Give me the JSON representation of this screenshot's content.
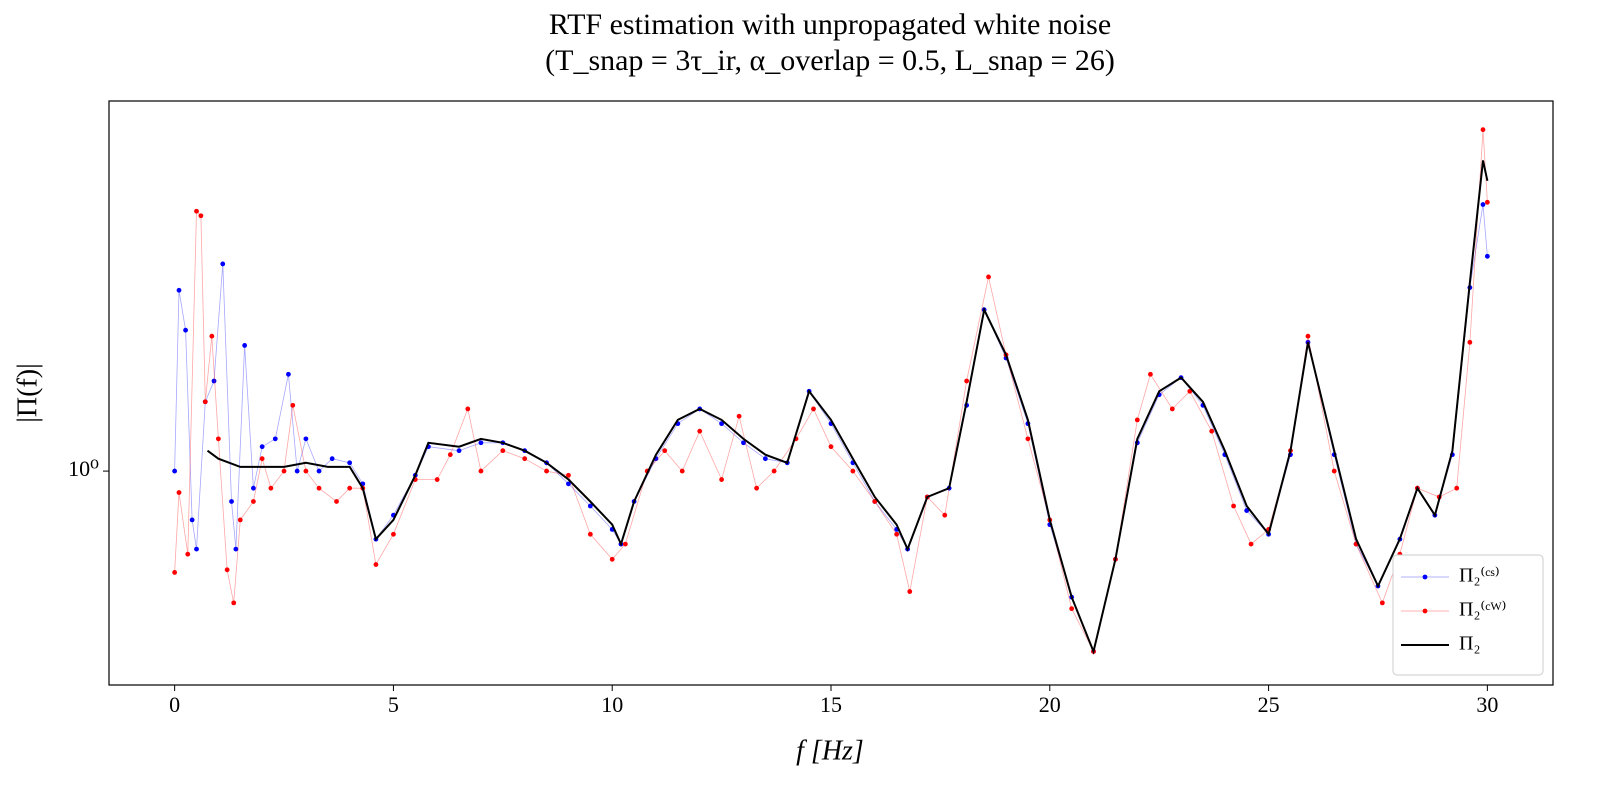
{
  "chart_data": {
    "type": "line",
    "title": "RTF estimation with unpropagated white noise",
    "subtitle": "(T_snap = 3τ_ir,   α_overlap = 0.5,   L_snap = 26)",
    "x_label": "f [Hz]",
    "y_label": "|Π(f)|",
    "xlim": [
      -1.5,
      31.5
    ],
    "xticks": [
      0,
      5,
      10,
      15,
      20,
      25,
      30
    ],
    "ylim": [
      0.6,
      2.42
    ],
    "yticks": [
      {
        "value": 1,
        "label": "10⁰"
      }
    ],
    "log_y": true,
    "legend": "lower right",
    "series": [
      {
        "name": "Π₂⁽ᶜˢ⁾",
        "color": "#0000ff",
        "marker": true,
        "x": [
          0,
          0.1,
          0.25,
          0.4,
          0.5,
          0.7,
          0.9,
          1.1,
          1.3,
          1.4,
          1.6,
          1.8,
          2.0,
          2.3,
          2.6,
          2.8,
          3.0,
          3.3,
          3.6,
          4,
          4.3,
          4.6,
          5,
          5.5,
          5.8,
          6.5,
          7,
          7.5,
          8,
          8.5,
          9,
          9.5,
          10,
          10.2,
          10.5,
          11,
          11.5,
          12,
          12.5,
          13,
          13.5,
          14,
          14.5,
          15,
          15.5,
          16,
          16.5,
          16.75,
          17.2,
          17.7,
          18.1,
          18.5,
          19,
          19.5,
          20,
          20.5,
          21,
          21.5,
          22,
          22.5,
          23,
          23.5,
          24,
          24.5,
          25,
          25.5,
          25.9,
          26.5,
          27,
          27.5,
          28,
          28.4,
          28.8,
          29.2,
          29.6,
          29.9,
          30
        ],
        "values": [
          1.0,
          1.54,
          1.4,
          0.89,
          0.83,
          1.18,
          1.24,
          1.64,
          0.93,
          0.83,
          1.35,
          0.96,
          1.06,
          1.08,
          1.26,
          1.0,
          1.08,
          1.0,
          1.03,
          1.02,
          0.97,
          0.85,
          0.9,
          0.99,
          1.06,
          1.05,
          1.07,
          1.07,
          1.05,
          1.02,
          0.97,
          0.92,
          0.87,
          0.84,
          0.93,
          1.03,
          1.12,
          1.16,
          1.12,
          1.07,
          1.03,
          1.02,
          1.21,
          1.12,
          1.02,
          0.93,
          0.87,
          0.83,
          0.94,
          0.96,
          1.17,
          1.47,
          1.31,
          1.12,
          0.88,
          0.74,
          0.65,
          0.81,
          1.07,
          1.2,
          1.25,
          1.17,
          1.04,
          0.91,
          0.86,
          1.04,
          1.36,
          1.04,
          0.84,
          0.76,
          0.85,
          0.96,
          0.9,
          1.04,
          1.55,
          1.89,
          1.67
        ]
      },
      {
        "name": "Π₂⁽ᶜᵂ⁾",
        "color": "#ff0000",
        "marker": true,
        "x": [
          0,
          0.1,
          0.3,
          0.5,
          0.6,
          0.7,
          0.85,
          1.0,
          1.2,
          1.35,
          1.5,
          1.8,
          2.0,
          2.2,
          2.5,
          2.7,
          3.0,
          3.3,
          3.7,
          4.0,
          4.3,
          4.6,
          5.0,
          5.5,
          6.0,
          6.3,
          6.7,
          7.0,
          7.5,
          8,
          8.5,
          9,
          9.5,
          10.0,
          10.3,
          10.8,
          11.2,
          11.6,
          12,
          12.5,
          12.9,
          13.3,
          13.7,
          14.2,
          14.6,
          15.0,
          15.5,
          16,
          16.5,
          16.8,
          17.2,
          17.6,
          18.1,
          18.6,
          19,
          19.5,
          20,
          20.5,
          21,
          21.5,
          22,
          22.3,
          22.8,
          23.2,
          23.7,
          24.2,
          24.6,
          25,
          25.5,
          25.9,
          26.5,
          27,
          27.6,
          28,
          28.4,
          28.9,
          29.3,
          29.6,
          29.9,
          30
        ],
        "values": [
          0.785,
          0.95,
          0.82,
          1.86,
          1.84,
          1.18,
          1.38,
          1.08,
          0.79,
          0.73,
          0.89,
          0.93,
          1.03,
          0.96,
          1.0,
          1.17,
          1.0,
          0.96,
          0.93,
          0.96,
          0.96,
          0.8,
          0.86,
          0.98,
          0.98,
          1.04,
          1.16,
          1.0,
          1.05,
          1.03,
          1.0,
          0.99,
          0.86,
          0.81,
          0.84,
          1.0,
          1.05,
          1.0,
          1.1,
          0.98,
          1.14,
          0.96,
          1.0,
          1.08,
          1.16,
          1.06,
          1.0,
          0.93,
          0.86,
          0.75,
          0.94,
          0.9,
          1.24,
          1.59,
          1.32,
          1.08,
          0.89,
          0.72,
          0.65,
          0.81,
          1.13,
          1.26,
          1.16,
          1.21,
          1.1,
          0.92,
          0.84,
          0.87,
          1.05,
          1.38,
          1.0,
          0.84,
          0.73,
          0.82,
          0.96,
          0.94,
          0.96,
          1.36,
          2.26,
          1.9
        ]
      },
      {
        "name": "Π₂",
        "color": "#000000",
        "marker": false,
        "x": [
          0.75,
          1,
          1.5,
          2,
          2.5,
          3,
          3.5,
          4,
          4.3,
          4.6,
          5,
          5.5,
          5.8,
          6.5,
          7,
          7.5,
          8,
          8.5,
          9,
          9.5,
          10,
          10.2,
          10.5,
          11,
          11.5,
          12,
          12.5,
          13,
          13.5,
          14,
          14.5,
          15,
          15.5,
          16,
          16.5,
          16.75,
          17.2,
          17.7,
          18.1,
          18.5,
          19,
          19.5,
          20,
          20.5,
          21,
          21.5,
          22,
          22.5,
          23,
          23.5,
          24,
          24.5,
          25,
          25.5,
          25.9,
          26.5,
          27,
          27.5,
          28,
          28.4,
          28.8,
          29.2,
          29.6,
          29.9,
          30
        ],
        "values": [
          1.05,
          1.03,
          1.01,
          1.01,
          1.01,
          1.02,
          1.01,
          1.01,
          0.96,
          0.85,
          0.89,
          0.99,
          1.07,
          1.06,
          1.08,
          1.07,
          1.05,
          1.02,
          0.98,
          0.93,
          0.88,
          0.84,
          0.93,
          1.04,
          1.13,
          1.16,
          1.13,
          1.08,
          1.04,
          1.02,
          1.21,
          1.13,
          1.03,
          0.94,
          0.88,
          0.83,
          0.94,
          0.96,
          1.18,
          1.47,
          1.32,
          1.13,
          0.89,
          0.74,
          0.65,
          0.81,
          1.08,
          1.21,
          1.25,
          1.18,
          1.05,
          0.92,
          0.86,
          1.05,
          1.36,
          1.05,
          0.85,
          0.76,
          0.85,
          0.96,
          0.9,
          1.05,
          1.57,
          2.1,
          2.0
        ]
      }
    ]
  }
}
